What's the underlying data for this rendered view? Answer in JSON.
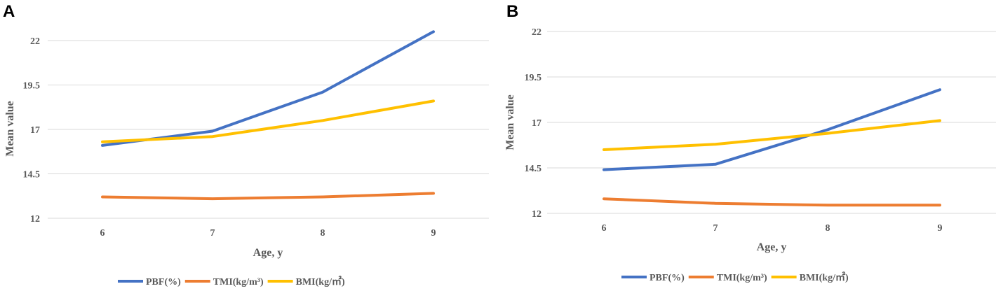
{
  "chart_data": [
    {
      "panel": "A",
      "type": "line",
      "categories": [
        "6",
        "7",
        "8",
        "9"
      ],
      "xlabel": "Age, y",
      "ylabel": "Mean value",
      "ylim": [
        12,
        22.5
      ],
      "yticks": [
        "12",
        "14.5",
        "17",
        "19.5",
        "22"
      ],
      "grid": true,
      "legend": "bottom",
      "series": [
        {
          "name": "PBF(%)",
          "color": "#4472C4",
          "values": [
            16.1,
            16.9,
            19.1,
            22.5
          ]
        },
        {
          "name": "TMI(kg/m³)",
          "color": "#ED7D31",
          "values": [
            13.2,
            13.1,
            13.2,
            13.4
          ]
        },
        {
          "name": "BMI(kg/㎡)",
          "color": "#FFC000",
          "values": [
            16.3,
            16.6,
            17.5,
            18.6
          ]
        }
      ]
    },
    {
      "panel": "B",
      "type": "line",
      "categories": [
        "6",
        "7",
        "8",
        "9"
      ],
      "xlabel": "Age, y",
      "ylabel": "Mean value",
      "ylim": [
        12,
        22
      ],
      "yticks": [
        "12",
        "14.5",
        "17",
        "19.5",
        "22"
      ],
      "grid": true,
      "legend": "bottom",
      "series": [
        {
          "name": "PBF(%)",
          "color": "#4472C4",
          "values": [
            14.4,
            14.7,
            16.6,
            18.8
          ]
        },
        {
          "name": "TMI(kg/m³)",
          "color": "#ED7D31",
          "values": [
            12.8,
            12.55,
            12.45,
            12.45
          ]
        },
        {
          "name": "BMI(kg/㎡)",
          "color": "#FFC000",
          "values": [
            15.5,
            15.8,
            16.4,
            17.1
          ]
        }
      ]
    }
  ]
}
